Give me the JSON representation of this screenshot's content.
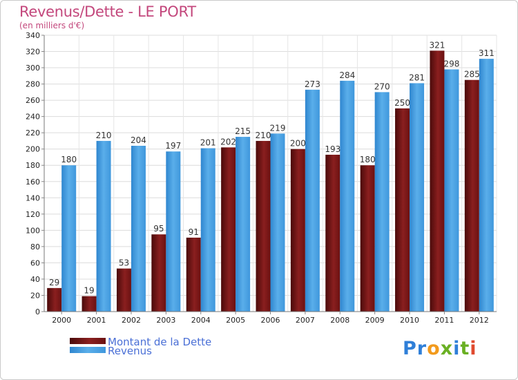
{
  "chart_data": {
    "type": "bar",
    "title": "Revenus/Dette - LE PORT",
    "subtitle": "(en milliers d'€)",
    "categories": [
      "2000",
      "2001",
      "2002",
      "2003",
      "2004",
      "2005",
      "2006",
      "2007",
      "2008",
      "2009",
      "2010",
      "2011",
      "2012"
    ],
    "series": [
      {
        "name": "Montant de la Dette",
        "color": "#7a1414",
        "values": [
          29,
          19,
          53,
          95,
          91,
          202,
          210,
          200,
          193,
          180,
          250,
          321,
          285
        ]
      },
      {
        "name": "Revenus",
        "color": "#4da2e6",
        "values": [
          180,
          210,
          204,
          197,
          201,
          215,
          219,
          273,
          284,
          270,
          281,
          298,
          311
        ]
      }
    ],
    "ylim": [
      0,
      340
    ],
    "yticks": [
      0,
      20,
      40,
      60,
      80,
      100,
      120,
      140,
      160,
      180,
      200,
      220,
      240,
      260,
      280,
      300,
      320,
      340
    ],
    "grid": true,
    "legend_position": "bottom-left"
  },
  "brand": {
    "logo_letters": [
      "P",
      "r",
      "o",
      "x",
      "i",
      "t",
      "i"
    ],
    "logo_colors": [
      "#2f7fd8",
      "#2f7fd8",
      "#f29a1c",
      "#6ab023",
      "#2f7fd8",
      "#6ab023",
      "#e04a2f"
    ]
  }
}
